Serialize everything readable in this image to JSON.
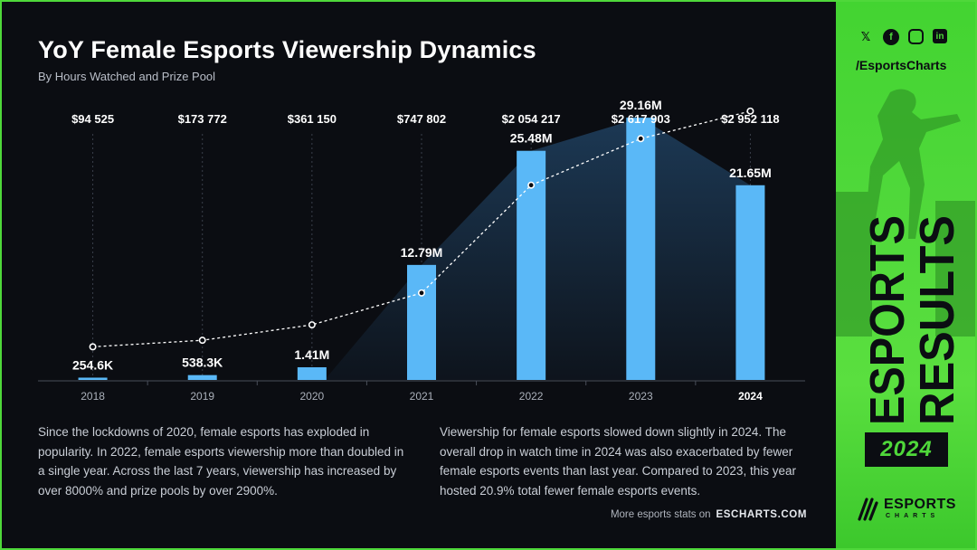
{
  "title": "YoY Female Esports Viewership Dynamics",
  "subtitle": "By Hours Watched and Prize Pool",
  "chart_data": {
    "type": "bar",
    "categories": [
      "2018",
      "2019",
      "2020",
      "2021",
      "2022",
      "2023",
      "2024"
    ],
    "series": [
      {
        "name": "Hours Watched",
        "values": [
          254600,
          538300,
          1410000,
          12790000,
          25480000,
          29160000,
          21650000
        ],
        "labels": [
          "254.6K",
          "538.3K",
          "1.41M",
          "12.79M",
          "25.48M",
          "29.16M",
          "21.65M"
        ]
      },
      {
        "name": "Prize Pool",
        "type": "line",
        "values": [
          94525,
          173772,
          361150,
          747802,
          2054217,
          2617903,
          2952118
        ],
        "labels": [
          "$94 525",
          "$173 772",
          "$361 150",
          "$747 802",
          "$2 054 217",
          "$2 617 903",
          "$2 952 118"
        ]
      }
    ],
    "highlight_category": "2024",
    "ylim": [
      0,
      34000000
    ],
    "colors": {
      "bar": "#5ab8f7",
      "area": "#1d3b58",
      "line": "#ffffff"
    }
  },
  "paragraphs": {
    "left": "Since the lockdowns of 2020, female esports has exploded in popularity. In 2022, female esports viewership more than doubled in a single year. Across the last 7 years, viewership has increased by over 8000% and prize pools by over 2900%.",
    "right": "Viewership for female esports slowed down slightly in 2024. The overall drop in watch time in 2024 was also exacerbated by fewer female esports events than last year.  Compared to 2023, this year hosted 20.9% total fewer female esports events."
  },
  "footer": {
    "text": "More esports stats on",
    "link": "ESCHARTS.COM"
  },
  "sidebar": {
    "handle": "/EsportsCharts",
    "socials": [
      "x-icon",
      "facebook-icon",
      "instagram-icon",
      "linkedin-icon"
    ],
    "vertical_title_line1": "ESPORTS",
    "vertical_title_line2": "RESULTS",
    "year_badge": "2024",
    "logo_line1": "ESPORTS",
    "logo_line2": "CHARTS",
    "accent": "#4fd83a"
  }
}
